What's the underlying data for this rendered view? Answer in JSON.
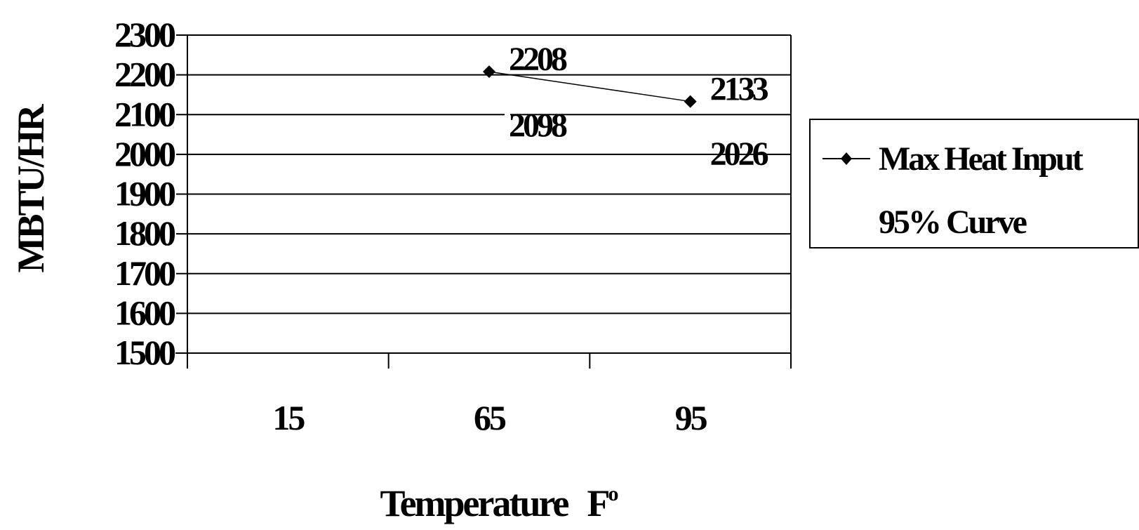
{
  "chart_data": {
    "type": "line",
    "title": "",
    "xlabel": "Temperature",
    "xlabel_unit": "F",
    "xlabel_sup": "o",
    "ylabel": "MBTU/HR",
    "categories": [
      "15",
      "65",
      "95"
    ],
    "ylim": [
      1500,
      2300
    ],
    "yticks": [
      "2300",
      "2200",
      "2100",
      "2000",
      "1900",
      "1800",
      "1700",
      "1600",
      "1500"
    ],
    "grid": true,
    "legend_position": "right",
    "series": [
      {
        "name": "Max Heat Input",
        "marker": "diamond",
        "color": "#000000",
        "points": [
          {
            "category": "65",
            "value": 2208
          },
          {
            "category": "95",
            "value": 2133
          }
        ]
      },
      {
        "name": "95% Curve",
        "marker": "none",
        "color": "#000000",
        "points": [
          {
            "category": "65",
            "value": 2098
          },
          {
            "category": "95",
            "value": 2026
          }
        ]
      }
    ]
  }
}
